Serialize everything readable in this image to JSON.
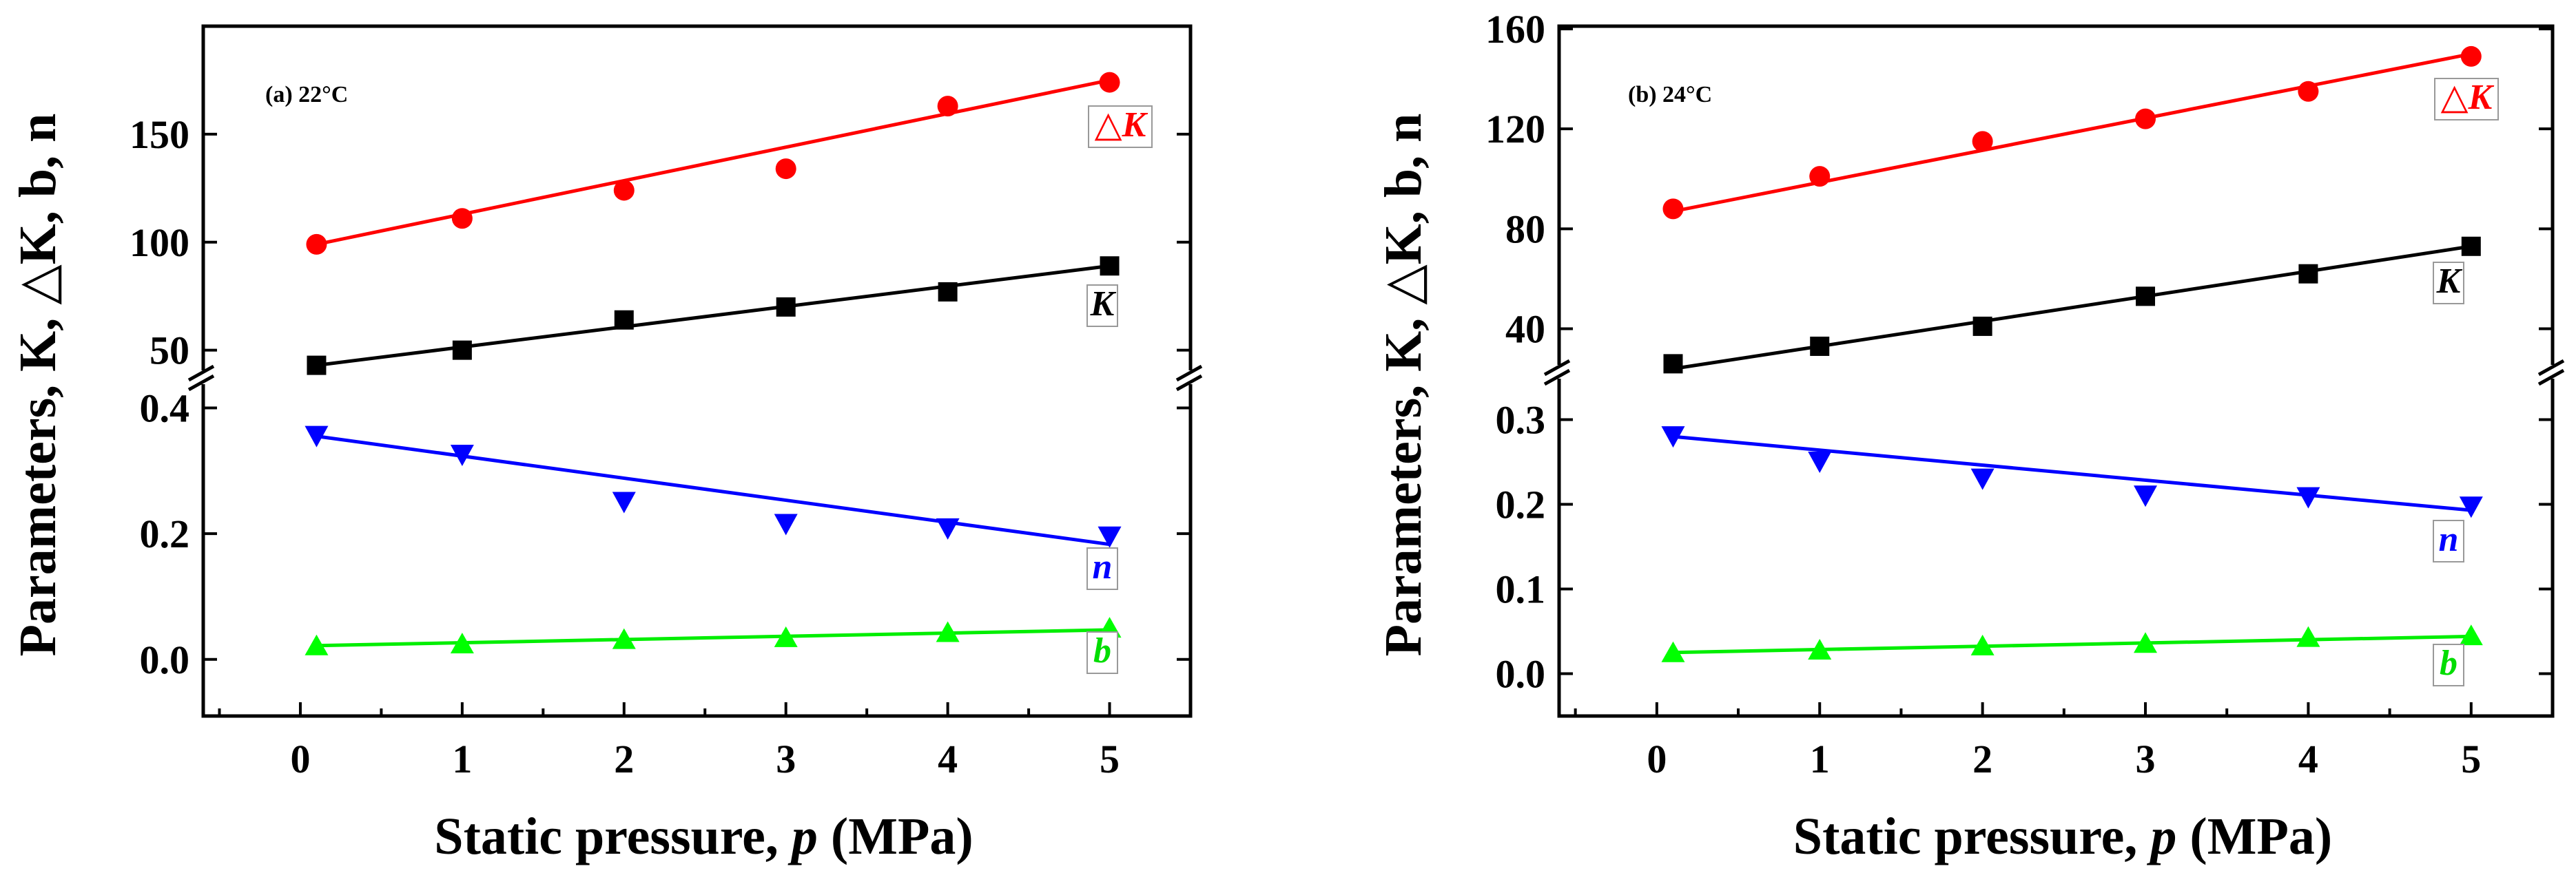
{
  "chart_data": [
    {
      "type": "scatter",
      "panel_label": "(a)",
      "temperature": "22°C",
      "title": "",
      "xlabel": "Static pressure, p (MPa)",
      "xlabel_parts": {
        "prefix": "Static pressure, ",
        "italic": "p",
        "suffix": " (MPa)"
      },
      "ylabel": "Parameters, K, △K, b, n",
      "x_ticks": [
        "0",
        "1",
        "2",
        "3",
        "4",
        "5"
      ],
      "xlim": [
        -0.6,
        5.5
      ],
      "segments": {
        "upper": {
          "ylim": [
            40,
            200
          ],
          "ticks": [
            50,
            100,
            150
          ],
          "tick_labels": [
            "50",
            "100",
            "150"
          ]
        },
        "lower": {
          "ylim": [
            -0.09,
            0.44
          ],
          "ticks": [
            0.0,
            0.2,
            0.4
          ],
          "tick_labels": [
            "0.0",
            "0.2",
            "0.4"
          ]
        }
      },
      "series": [
        {
          "name": "△K",
          "segment": "upper",
          "marker": "circle",
          "color": "#ff0000",
          "x": [
            0.1,
            1,
            2,
            3,
            4,
            5
          ],
          "y": [
            99,
            111,
            124,
            134,
            163,
            174
          ],
          "fit": [
            99,
            175
          ]
        },
        {
          "name": "K",
          "segment": "upper",
          "marker": "square",
          "color": "#000000",
          "x": [
            0.1,
            1,
            2,
            3,
            4,
            5
          ],
          "y": [
            43,
            50,
            64,
            70,
            77,
            89
          ],
          "fit": [
            43,
            89
          ]
        },
        {
          "name": "n",
          "segment": "lower",
          "marker": "triangle-down",
          "color": "#0000ff",
          "x": [
            0.1,
            1,
            2,
            3,
            4,
            5
          ],
          "y": [
            0.355,
            0.325,
            0.25,
            0.215,
            0.208,
            0.195
          ],
          "fit": [
            0.355,
            0.183
          ]
        },
        {
          "name": "b",
          "segment": "lower",
          "marker": "triangle-up",
          "color": "#00ff00",
          "x": [
            0.1,
            1,
            2,
            3,
            4,
            5
          ],
          "y": [
            0.022,
            0.025,
            0.032,
            0.035,
            0.043,
            0.05
          ],
          "fit": [
            0.022,
            0.047
          ]
        }
      ]
    },
    {
      "type": "scatter",
      "panel_label": "(b)",
      "temperature": "24°C",
      "title": "",
      "xlabel": "Static pressure, p (MPa)",
      "xlabel_parts": {
        "prefix": "Static pressure, ",
        "italic": "p",
        "suffix": " (MPa)"
      },
      "ylabel": "Parameters, K, △K, b, n",
      "x_ticks": [
        "0",
        "1",
        "2",
        "3",
        "4",
        "5"
      ],
      "xlim": [
        -0.6,
        5.5
      ],
      "segments": {
        "upper": {
          "ylim": [
            25,
            160
          ],
          "ticks": [
            40,
            80,
            120,
            160
          ],
          "tick_labels": [
            "40",
            "80",
            "120",
            "160"
          ]
        },
        "lower": {
          "ylim": [
            -0.05,
            0.35
          ],
          "ticks": [
            0.0,
            0.1,
            0.2,
            0.3
          ],
          "tick_labels": [
            "0.0",
            "0.1",
            "0.2",
            "0.3"
          ]
        }
      },
      "series": [
        {
          "name": "△K",
          "segment": "upper",
          "marker": "circle",
          "color": "#ff0000",
          "x": [
            0.1,
            1,
            2,
            3,
            4,
            5
          ],
          "y": [
            88,
            101,
            115,
            124,
            135,
            149
          ],
          "fit": [
            87,
            150
          ]
        },
        {
          "name": "K",
          "segment": "upper",
          "marker": "square",
          "color": "#000000",
          "x": [
            0.1,
            1,
            2,
            3,
            4,
            5
          ],
          "y": [
            26,
            33,
            41,
            53,
            62,
            73
          ],
          "fit": [
            24,
            73
          ]
        },
        {
          "name": "n",
          "segment": "lower",
          "marker": "triangle-down",
          "color": "#0000ff",
          "x": [
            0.1,
            1,
            2,
            3,
            4,
            5
          ],
          "y": [
            0.28,
            0.25,
            0.23,
            0.21,
            0.208,
            0.197
          ],
          "fit": [
            0.28,
            0.193
          ]
        },
        {
          "name": "b",
          "segment": "lower",
          "marker": "triangle-up",
          "color": "#00ff00",
          "x": [
            0.1,
            1,
            2,
            3,
            4,
            5
          ],
          "y": [
            0.025,
            0.028,
            0.033,
            0.036,
            0.043,
            0.045
          ],
          "fit": [
            0.025,
            0.044
          ]
        }
      ]
    }
  ]
}
